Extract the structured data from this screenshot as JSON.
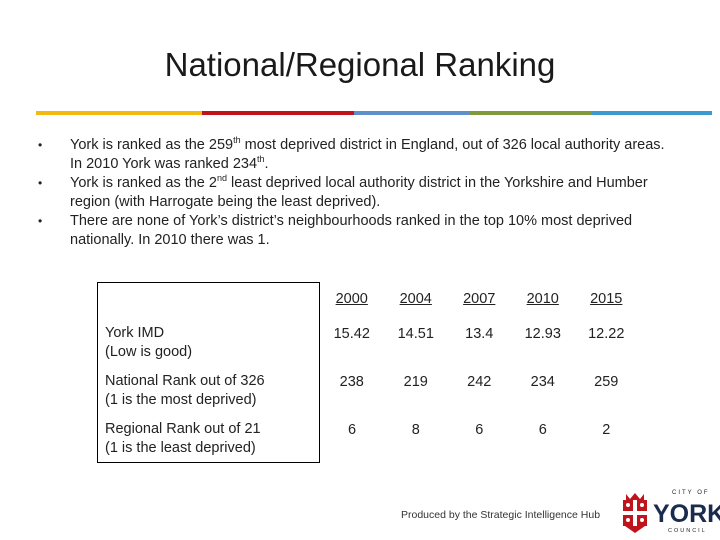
{
  "slide": {
    "title": "National/Regional Ranking",
    "rule_colors": [
      "#f2b90f",
      "#c0141c",
      "#5f8fc9",
      "#7f9a3c",
      "#3b9bd1"
    ]
  },
  "bullets": [
    {
      "pre": "York is ranked as the 259",
      "sup": "th",
      "post": " most deprived district in England, out of 326 local authority areas. In 2010 York was ranked 234",
      "sup2": "th",
      "post2": "."
    },
    {
      "pre": "York is ranked as the 2",
      "sup": "nd",
      "post": " least deprived local authority district in the Yorkshire and Humber region (with Harrogate being the least deprived).",
      "sup2": "",
      "post2": ""
    },
    {
      "pre": "There are none of York’s district’s neighbourhoods ranked in the top 10% most deprived nationally. In 2010 there was 1.",
      "sup": "",
      "post": "",
      "sup2": "",
      "post2": ""
    }
  ],
  "table": {
    "years": [
      "2000",
      "2004",
      "2007",
      "2010",
      "2015"
    ],
    "rows": [
      {
        "label1": "York IMD",
        "label2": "(Low is good)",
        "values": [
          "15.42",
          "14.51",
          "13.4",
          "12.93",
          "12.22"
        ]
      },
      {
        "label1": "National Rank out of 326",
        "label2": "(1 is the most deprived)",
        "values": [
          "238",
          "219",
          "242",
          "234",
          "259"
        ]
      },
      {
        "label1": "Regional Rank out of 21",
        "label2": "(1 is the least deprived)",
        "values": [
          "6",
          "8",
          "6",
          "6",
          "2"
        ]
      }
    ]
  },
  "footer": {
    "text": "Produced by the Strategic Intelligence Hub"
  },
  "logo": {
    "city_of": "CITY OF",
    "name": "YORK",
    "council": "COUNCIL",
    "icon": "york-crest-icon"
  }
}
